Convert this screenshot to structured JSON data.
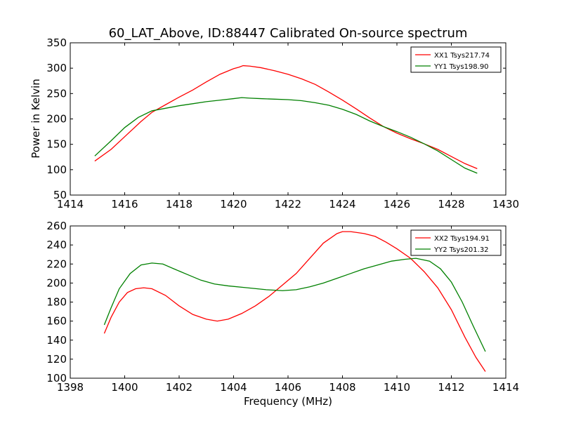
{
  "title": "60_LAT_Above, ID:88447 Calibrated On-source spectrum",
  "chart_data": [
    {
      "type": "line",
      "xlabel": "",
      "ylabel": "Power in Kelvin",
      "xlim": [
        1414,
        1430
      ],
      "ylim": [
        50,
        350
      ],
      "xticks": [
        1414,
        1416,
        1418,
        1420,
        1422,
        1424,
        1426,
        1428,
        1430
      ],
      "yticks": [
        50,
        100,
        150,
        200,
        250,
        300,
        350
      ],
      "legend_position": "top-right",
      "series": [
        {
          "name": "XX1 Tsys217.74",
          "color": "#ff0000",
          "points": [
            [
              1414.9,
              117
            ],
            [
              1415.5,
              140
            ],
            [
              1416.0,
              165
            ],
            [
              1416.6,
              195
            ],
            [
              1417.0,
              213
            ],
            [
              1417.5,
              228
            ],
            [
              1418.0,
              243
            ],
            [
              1418.5,
              257
            ],
            [
              1419.0,
              273
            ],
            [
              1419.5,
              288
            ],
            [
              1420.0,
              299
            ],
            [
              1420.2,
              302
            ],
            [
              1420.35,
              305
            ],
            [
              1420.6,
              304
            ],
            [
              1421.0,
              301
            ],
            [
              1421.5,
              295
            ],
            [
              1422.0,
              288
            ],
            [
              1422.5,
              279
            ],
            [
              1423.0,
              268
            ],
            [
              1423.5,
              253
            ],
            [
              1424.0,
              237
            ],
            [
              1424.5,
              220
            ],
            [
              1425.0,
              202
            ],
            [
              1425.5,
              185
            ],
            [
              1426.0,
              172
            ],
            [
              1426.5,
              161
            ],
            [
              1427.0,
              151
            ],
            [
              1427.5,
              140
            ],
            [
              1428.0,
              126
            ],
            [
              1428.5,
              112
            ],
            [
              1428.95,
              102
            ]
          ]
        },
        {
          "name": "YY1 Tsys198.90",
          "color": "#008000",
          "points": [
            [
              1414.9,
              127
            ],
            [
              1415.5,
              157
            ],
            [
              1416.0,
              183
            ],
            [
              1416.5,
              203
            ],
            [
              1417.0,
              216
            ],
            [
              1417.5,
              221
            ],
            [
              1418.0,
              226
            ],
            [
              1418.5,
              230
            ],
            [
              1419.0,
              234
            ],
            [
              1419.5,
              237
            ],
            [
              1420.0,
              240
            ],
            [
              1420.3,
              242
            ],
            [
              1420.6,
              241
            ],
            [
              1421.0,
              240
            ],
            [
              1421.5,
              239
            ],
            [
              1422.0,
              238
            ],
            [
              1422.5,
              236
            ],
            [
              1423.0,
              232
            ],
            [
              1423.5,
              227
            ],
            [
              1424.0,
              219
            ],
            [
              1424.5,
              209
            ],
            [
              1425.0,
              196
            ],
            [
              1425.5,
              185
            ],
            [
              1426.0,
              175
            ],
            [
              1426.5,
              164
            ],
            [
              1427.0,
              151
            ],
            [
              1427.5,
              137
            ],
            [
              1428.0,
              120
            ],
            [
              1428.5,
              103
            ],
            [
              1428.95,
              93
            ]
          ]
        }
      ]
    },
    {
      "type": "line",
      "xlabel": "Frequency (MHz)",
      "ylabel": "",
      "xlim": [
        1398,
        1414
      ],
      "ylim": [
        100,
        260
      ],
      "xticks": [
        1398,
        1400,
        1402,
        1404,
        1406,
        1408,
        1410,
        1412,
        1414
      ],
      "yticks": [
        100,
        120,
        140,
        160,
        180,
        200,
        220,
        240,
        260
      ],
      "legend_position": "top-right",
      "series": [
        {
          "name": "XX2 Tsys194.91",
          "color": "#ff0000",
          "points": [
            [
              1399.25,
              147
            ],
            [
              1399.5,
              164
            ],
            [
              1399.8,
              180
            ],
            [
              1400.1,
              190
            ],
            [
              1400.4,
              194
            ],
            [
              1400.7,
              195
            ],
            [
              1401.0,
              194
            ],
            [
              1401.5,
              187
            ],
            [
              1402.0,
              176
            ],
            [
              1402.5,
              167
            ],
            [
              1403.0,
              162
            ],
            [
              1403.4,
              160
            ],
            [
              1403.8,
              162
            ],
            [
              1404.3,
              168
            ],
            [
              1404.8,
              176
            ],
            [
              1405.3,
              186
            ],
            [
              1405.8,
              198
            ],
            [
              1406.3,
              210
            ],
            [
              1406.8,
              226
            ],
            [
              1407.3,
              242
            ],
            [
              1407.8,
              252
            ],
            [
              1408.0,
              254
            ],
            [
              1408.3,
              254
            ],
            [
              1408.8,
              252
            ],
            [
              1409.2,
              249
            ],
            [
              1409.6,
              243
            ],
            [
              1410.0,
              236
            ],
            [
              1410.5,
              226
            ],
            [
              1411.0,
              212
            ],
            [
              1411.5,
              195
            ],
            [
              1412.0,
              172
            ],
            [
              1412.5,
              143
            ],
            [
              1412.9,
              122
            ],
            [
              1413.25,
              107
            ]
          ]
        },
        {
          "name": "YY2 Tsys201.32",
          "color": "#008000",
          "points": [
            [
              1399.25,
              156
            ],
            [
              1399.5,
              174
            ],
            [
              1399.8,
              194
            ],
            [
              1400.2,
              210
            ],
            [
              1400.6,
              219
            ],
            [
              1401.0,
              221
            ],
            [
              1401.4,
              220
            ],
            [
              1401.8,
              215
            ],
            [
              1402.3,
              209
            ],
            [
              1402.8,
              203
            ],
            [
              1403.3,
              199
            ],
            [
              1403.8,
              197
            ],
            [
              1404.5,
              195
            ],
            [
              1405.2,
              193
            ],
            [
              1405.8,
              192
            ],
            [
              1406.3,
              193
            ],
            [
              1406.8,
              196
            ],
            [
              1407.3,
              200
            ],
            [
              1407.8,
              205
            ],
            [
              1408.3,
              210
            ],
            [
              1408.8,
              215
            ],
            [
              1409.3,
              219
            ],
            [
              1409.8,
              223
            ],
            [
              1410.3,
              225
            ],
            [
              1410.7,
              226
            ],
            [
              1411.2,
              223
            ],
            [
              1411.6,
              215
            ],
            [
              1412.0,
              201
            ],
            [
              1412.4,
              180
            ],
            [
              1412.8,
              155
            ],
            [
              1413.25,
              128
            ]
          ]
        }
      ]
    }
  ]
}
